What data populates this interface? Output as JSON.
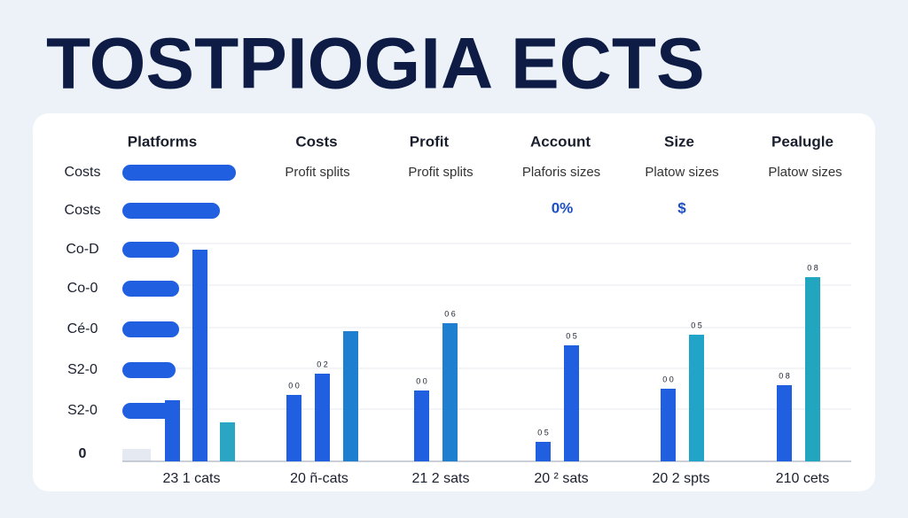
{
  "header": {
    "title": "TOSTPIOGIA ECTS"
  },
  "table": {
    "headers": [
      "Platforms",
      "Costs",
      "Profit",
      "Account",
      "Size",
      "Pealugle"
    ],
    "subheaders": [
      "Profit splits",
      "Profit splits",
      "Plaforis sizes",
      "Platow sizes",
      "Platow sizes"
    ],
    "badges": [
      "0%",
      "$"
    ]
  },
  "rows": [
    {
      "label": "Costs",
      "value": 128
    },
    {
      "label": "Costs",
      "value": 110
    },
    {
      "label": "Co-D",
      "value": 64
    },
    {
      "label": "Co-0",
      "value": 64
    },
    {
      "label": "Cé-0",
      "value": 64
    },
    {
      "label": "S2-0",
      "value": 60
    },
    {
      "label": "S2-0",
      "value": 57
    },
    {
      "label": "0",
      "value": 32
    }
  ],
  "groups": [
    {
      "label": "23 1 cats",
      "bars": [
        {
          "value": 69,
          "color": "#1f5fe0"
        },
        {
          "value": 239,
          "color": "#1f5fe0"
        },
        {
          "value": 44,
          "color": "#2aa6c4"
        }
      ]
    },
    {
      "label": "20 ñ-cats",
      "bars": [
        {
          "value": 75,
          "tag": "0 0",
          "color": "#1f5fe0"
        },
        {
          "value": 99,
          "tag": "0 2",
          "color": "#1f5fe0"
        },
        {
          "value": 147,
          "color": "#1e7fd0"
        }
      ]
    },
    {
      "label": "21 2 sats",
      "bars": [
        {
          "value": 80,
          "tag": "0 0",
          "color": "#1f5fe0"
        },
        {
          "value": 156,
          "tag": "0 6",
          "color": "#1e7fd0"
        }
      ]
    },
    {
      "label": "20 ² sats",
      "bars": [
        {
          "value": 22,
          "tag": "0 5",
          "color": "#1f5fe0"
        },
        {
          "value": 131,
          "tag": "0 5",
          "color": "#1f5fe0"
        }
      ]
    },
    {
      "label": "20 2 spts",
      "bars": [
        {
          "value": 82,
          "tag": "0 0",
          "color": "#1f5fe0"
        },
        {
          "value": 143,
          "tag": "0 5",
          "color": "#22a3c8"
        }
      ]
    },
    {
      "label": "210 cets",
      "bars": [
        {
          "value": 86,
          "tag": "0 8",
          "color": "#1f5fe0"
        },
        {
          "value": 208,
          "tag": "0 8",
          "color": "#22a6c0"
        }
      ]
    }
  ]
}
